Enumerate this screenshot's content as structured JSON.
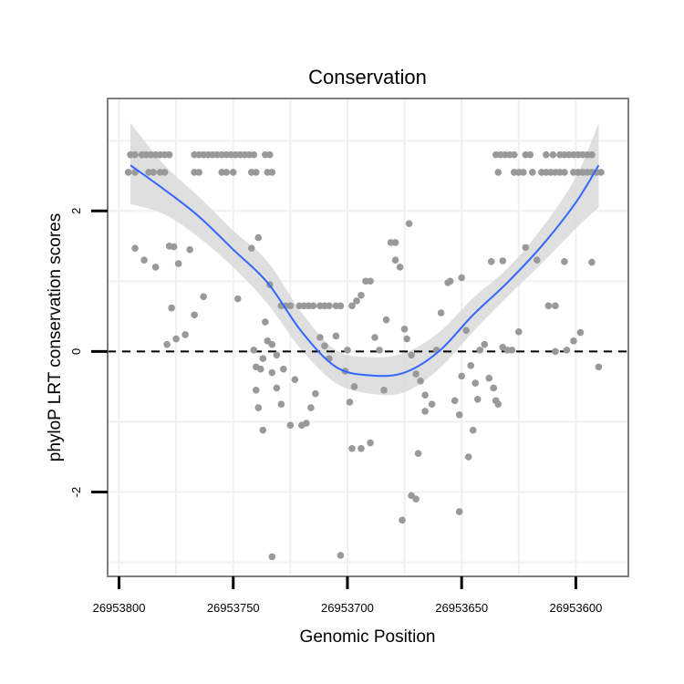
{
  "chart_data": {
    "type": "scatter",
    "title": "Conservation",
    "xlabel": "Genomic Position",
    "ylabel": "phyloP LRT conservation scores",
    "x_reversed": true,
    "xlim": [
      26953805,
      26953577
    ],
    "ylim": [
      -3.2,
      3.6
    ],
    "x_ticks": [
      26953800,
      26953750,
      26953700,
      26953650,
      26953600
    ],
    "x_tick_labels": [
      "26953800",
      "26953750",
      "26953700",
      "26953650",
      "26953600"
    ],
    "y_ticks": [
      -2,
      0,
      2
    ],
    "y_tick_labels": [
      "-2",
      "0",
      "2"
    ],
    "reference_line": {
      "y": 0,
      "style": "dashed"
    },
    "grid": true,
    "colors": {
      "points": "#999999",
      "smooth": "#3366ff",
      "ribbon": "#d9d9d9",
      "panel_border": "#7f7f7f",
      "grid": "#f0f0f0"
    },
    "series": [
      {
        "name": "observations",
        "points": [
          [
            26953795,
            2.8
          ],
          [
            26953793,
            2.8
          ],
          [
            26953790,
            2.8
          ],
          [
            26953788,
            2.8
          ],
          [
            26953786,
            2.8
          ],
          [
            26953784,
            2.8
          ],
          [
            26953782,
            2.8
          ],
          [
            26953780,
            2.8
          ],
          [
            26953778,
            2.8
          ],
          [
            26953767,
            2.8
          ],
          [
            26953765,
            2.8
          ],
          [
            26953763,
            2.8
          ],
          [
            26953761,
            2.8
          ],
          [
            26953759,
            2.8
          ],
          [
            26953757,
            2.8
          ],
          [
            26953755,
            2.8
          ],
          [
            26953753,
            2.8
          ],
          [
            26953751,
            2.8
          ],
          [
            26953749,
            2.8
          ],
          [
            26953747,
            2.8
          ],
          [
            26953745,
            2.8
          ],
          [
            26953743,
            2.8
          ],
          [
            26953741,
            2.8
          ],
          [
            26953736,
            2.8
          ],
          [
            26953734,
            2.8
          ],
          [
            26953796,
            2.55
          ],
          [
            26953793,
            2.55
          ],
          [
            26953787,
            2.55
          ],
          [
            26953785,
            2.55
          ],
          [
            26953782,
            2.55
          ],
          [
            26953780,
            2.55
          ],
          [
            26953767,
            2.55
          ],
          [
            26953765,
            2.55
          ],
          [
            26953755,
            2.55
          ],
          [
            26953753,
            2.55
          ],
          [
            26953750,
            2.55
          ],
          [
            26953742,
            2.55
          ],
          [
            26953740,
            2.55
          ],
          [
            26953735,
            2.55
          ],
          [
            26953733,
            2.55
          ],
          [
            26953793,
            1.47
          ],
          [
            26953789,
            1.3
          ],
          [
            26953784,
            1.2
          ],
          [
            26953778,
            1.5
          ],
          [
            26953776,
            1.49
          ],
          [
            26953774,
            1.25
          ],
          [
            26953769,
            1.45
          ],
          [
            26953748,
            0.75
          ],
          [
            26953742,
            1.47
          ],
          [
            26953739,
            1.62
          ],
          [
            26953734,
            0.95
          ],
          [
            26953777,
            0.62
          ],
          [
            26953767,
            0.52
          ],
          [
            26953763,
            0.78
          ],
          [
            26953775,
            0.18
          ],
          [
            26953771,
            0.24
          ],
          [
            26953779,
            0.1
          ],
          [
            26953741,
            0.02
          ],
          [
            26953740,
            -0.22
          ],
          [
            26953738,
            -0.25
          ],
          [
            26953737,
            -0.1
          ],
          [
            26953735,
            0.15
          ],
          [
            26953736,
            0.42
          ],
          [
            26953733,
            0.1
          ],
          [
            26953731,
            -0.05
          ],
          [
            26953729,
            0.65
          ],
          [
            26953727,
            0.65
          ],
          [
            26953725,
            0.65
          ],
          [
            26953740,
            -0.55
          ],
          [
            26953739,
            -0.8
          ],
          [
            26953737,
            -1.12
          ],
          [
            26953733,
            -0.3
          ],
          [
            26953731,
            -0.52
          ],
          [
            26953729,
            -0.75
          ],
          [
            26953728,
            -0.25
          ],
          [
            26953725,
            -1.05
          ],
          [
            26953723,
            -0.4
          ],
          [
            26953720,
            -1.05
          ],
          [
            26953718,
            -1.02
          ],
          [
            26953716,
            -0.8
          ],
          [
            26953714,
            -0.6
          ],
          [
            26953721,
            0.65
          ],
          [
            26953719,
            0.65
          ],
          [
            26953717,
            0.65
          ],
          [
            26953715,
            0.65
          ],
          [
            26953712,
            0.65
          ],
          [
            26953710,
            0.65
          ],
          [
            26953708,
            0.65
          ],
          [
            26953705,
            0.65
          ],
          [
            26953703,
            0.65
          ],
          [
            26953698,
            0.65
          ],
          [
            26953712,
            0.2
          ],
          [
            26953710,
            0.08
          ],
          [
            26953708,
            -0.1
          ],
          [
            26953705,
            0.22
          ],
          [
            26953701,
            -0.28
          ],
          [
            26953699,
            -0.72
          ],
          [
            26953700,
            0.02
          ],
          [
            26953697,
            -0.5
          ],
          [
            26953698,
            -1.38
          ],
          [
            26953694,
            -1.38
          ],
          [
            26953690,
            -1.3
          ],
          [
            26953696,
            0.72
          ],
          [
            26953694,
            0.8
          ],
          [
            26953692,
            1.0
          ],
          [
            26953690,
            1.0
          ],
          [
            26953688,
            0.2
          ],
          [
            26953686,
            0.02
          ],
          [
            26953684,
            -0.55
          ],
          [
            26953683,
            0.45
          ],
          [
            26953681,
            1.55
          ],
          [
            26953679,
            1.55
          ],
          [
            26953679,
            1.3
          ],
          [
            26953677,
            1.2
          ],
          [
            26953675,
            0.32
          ],
          [
            26953674,
            0.18
          ],
          [
            26953672,
            -0.05
          ],
          [
            26953670,
            -0.32
          ],
          [
            26953668,
            -0.42
          ],
          [
            26953673,
            1.82
          ],
          [
            26953669,
            -1.45
          ],
          [
            26953672,
            -2.05
          ],
          [
            26953670,
            -2.1
          ],
          [
            26953676,
            -2.4
          ],
          [
            26953703,
            -2.9
          ],
          [
            26953733,
            -2.92
          ],
          [
            26953666,
            -0.62
          ],
          [
            26953666,
            -0.85
          ],
          [
            26953663,
            -0.75
          ],
          [
            26953661,
            0.02
          ],
          [
            26953659,
            0.55
          ],
          [
            26953656,
            0.98
          ],
          [
            26953653,
            -0.7
          ],
          [
            26953651,
            -0.9
          ],
          [
            26953650,
            -0.35
          ],
          [
            26953646,
            -0.2
          ],
          [
            26953644,
            -0.45
          ],
          [
            26953642,
            0.02
          ],
          [
            26953640,
            0.1
          ],
          [
            26953638,
            -0.38
          ],
          [
            26953636,
            -0.52
          ],
          [
            26953635,
            -0.7
          ],
          [
            26953634,
            -0.75
          ],
          [
            26953632,
            0.06
          ],
          [
            26953630,
            0.02
          ],
          [
            26953628,
            0.02
          ],
          [
            26953651,
            -2.28
          ],
          [
            26953647,
            -1.5
          ],
          [
            26953645,
            -1.12
          ],
          [
            26953643,
            -0.68
          ],
          [
            26953648,
            0.3
          ],
          [
            26953655,
            1.0
          ],
          [
            26953650,
            1.05
          ],
          [
            26953637,
            1.28
          ],
          [
            26953632,
            1.29
          ],
          [
            26953625,
            0.28
          ],
          [
            26953622,
            1.48
          ],
          [
            26953617,
            1.3
          ],
          [
            26953612,
            0.65
          ],
          [
            26953609,
            0.65
          ],
          [
            26953609,
            0.0
          ],
          [
            26953605,
            1.28
          ],
          [
            26953604,
            0.02
          ],
          [
            26953601,
            0.15
          ],
          [
            26953598,
            0.27
          ],
          [
            26953593,
            1.27
          ],
          [
            26953590,
            -0.22
          ],
          [
            26953635,
            2.8
          ],
          [
            26953633,
            2.8
          ],
          [
            26953631,
            2.8
          ],
          [
            26953629,
            2.8
          ],
          [
            26953627,
            2.8
          ],
          [
            26953622,
            2.8
          ],
          [
            26953620,
            2.8
          ],
          [
            26953613,
            2.8
          ],
          [
            26953610,
            2.8
          ],
          [
            26953607,
            2.8
          ],
          [
            26953605,
            2.8
          ],
          [
            26953603,
            2.8
          ],
          [
            26953601,
            2.8
          ],
          [
            26953599,
            2.8
          ],
          [
            26953597,
            2.8
          ],
          [
            26953595,
            2.8
          ],
          [
            26953593,
            2.8
          ],
          [
            26953634,
            2.55
          ],
          [
            26953627,
            2.55
          ],
          [
            26953625,
            2.55
          ],
          [
            26953623,
            2.55
          ],
          [
            26953619,
            2.55
          ],
          [
            26953615,
            2.55
          ],
          [
            26953613,
            2.55
          ],
          [
            26953611,
            2.55
          ],
          [
            26953609,
            2.55
          ],
          [
            26953607,
            2.55
          ],
          [
            26953605,
            2.55
          ],
          [
            26953601,
            2.55
          ],
          [
            26953599,
            2.55
          ],
          [
            26953597,
            2.55
          ],
          [
            26953595,
            2.55
          ],
          [
            26953593,
            2.55
          ],
          [
            26953591,
            2.55
          ],
          [
            26953589,
            2.55
          ]
        ]
      },
      {
        "name": "smooth",
        "x": [
          26953795,
          26953780,
          26953765,
          26953750,
          26953735,
          26953720,
          26953705,
          26953690,
          26953675,
          26953660,
          26953645,
          26953630,
          26953615,
          26953600,
          26953590
        ],
        "y": [
          2.65,
          2.3,
          1.92,
          1.45,
          0.98,
          0.28,
          -0.22,
          -0.34,
          -0.3,
          0.0,
          0.52,
          0.98,
          1.5,
          2.12,
          2.65
        ],
        "lower": [
          2.1,
          1.95,
          1.62,
          1.2,
          0.68,
          0.02,
          -0.45,
          -0.6,
          -0.58,
          -0.25,
          0.28,
          0.78,
          1.25,
          1.75,
          2.05
        ],
        "upper": [
          3.25,
          2.65,
          2.2,
          1.72,
          1.28,
          0.55,
          0.02,
          -0.08,
          -0.02,
          0.27,
          0.76,
          1.18,
          1.75,
          2.48,
          3.25
        ]
      }
    ]
  }
}
